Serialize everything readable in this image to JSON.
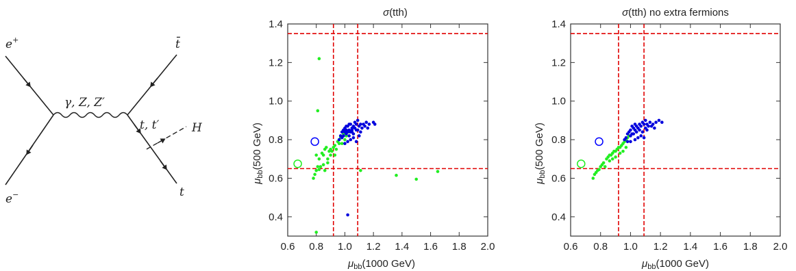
{
  "diagram": {
    "labels": {
      "e_plus": "e",
      "e_plus_sup": "+",
      "e_minus": "e",
      "e_minus_sup": "−",
      "boson": "γ, Z, Z′",
      "top_bar": "t̄",
      "top": "t",
      "internal_top": "t, t′",
      "higgs": "H"
    }
  },
  "chart_data": [
    {
      "type": "scatter",
      "title": "σ(tth)",
      "title_parts": {
        "symbol": "σ",
        "rest": "(tth)"
      },
      "xlabel": "μbb(1000 GeV)",
      "ylabel": "μbb(500 GeV)",
      "xlabel_parts": {
        "mu": "μ",
        "sub": "bb",
        "rest": "(1000 GeV)"
      },
      "ylabel_parts": {
        "mu": "μ",
        "sub": "bb",
        "rest": "(500 GeV)"
      },
      "xlim": [
        0.6,
        2.0
      ],
      "ylim": [
        0.3,
        1.4
      ],
      "xticks": [
        "0.6",
        "0.8",
        "1.0",
        "1.2",
        "1.4",
        "1.6",
        "1.8",
        "2.0"
      ],
      "yticks": [
        "0.4",
        "0.6",
        "0.8",
        "1.0",
        "1.2",
        "1.4"
      ],
      "grid": false,
      "reference_lines": {
        "vertical": [
          0.92,
          1.09
        ],
        "horizontal": [
          0.65,
          1.35
        ],
        "color": "#e00000"
      },
      "open_markers": [
        {
          "x": 0.79,
          "y": 0.79,
          "color": "#0000ff"
        },
        {
          "x": 0.67,
          "y": 0.675,
          "color": "#22ee22"
        }
      ],
      "series": [
        {
          "color": "#22ee22",
          "points": [
            [
              0.82,
              1.22
            ],
            [
              0.81,
              0.95
            ],
            [
              0.8,
              0.32
            ],
            [
              0.78,
              0.6
            ],
            [
              0.79,
              0.62
            ],
            [
              0.8,
              0.64
            ],
            [
              0.82,
              0.645
            ],
            [
              0.82,
              0.7
            ],
            [
              0.8,
              0.72
            ],
            [
              0.84,
              0.73
            ],
            [
              0.85,
              0.72
            ],
            [
              0.86,
              0.75
            ],
            [
              0.87,
              0.76
            ],
            [
              0.88,
              0.7
            ],
            [
              0.89,
              0.74
            ],
            [
              0.9,
              0.75
            ],
            [
              0.91,
              0.74
            ],
            [
              0.92,
              0.76
            ],
            [
              0.93,
              0.77
            ],
            [
              0.95,
              0.79
            ],
            [
              0.97,
              0.81
            ],
            [
              0.99,
              0.83
            ],
            [
              1.0,
              0.8
            ],
            [
              0.98,
              0.78
            ],
            [
              0.96,
              0.78
            ],
            [
              0.94,
              0.75
            ],
            [
              0.9,
              0.72
            ],
            [
              0.88,
              0.68
            ],
            [
              0.85,
              0.67
            ],
            [
              0.83,
              0.66
            ],
            [
              0.81,
              0.66
            ],
            [
              0.86,
              0.64
            ],
            [
              0.93,
              0.72
            ],
            [
              1.01,
              0.82
            ],
            [
              1.03,
              0.84
            ],
            [
              1.11,
              0.64
            ],
            [
              1.36,
              0.615
            ],
            [
              1.5,
              0.595
            ],
            [
              1.65,
              0.635
            ]
          ]
        },
        {
          "color": "#0000dd",
          "points": [
            [
              0.96,
              0.8
            ],
            [
              0.97,
              0.82
            ],
            [
              0.98,
              0.84
            ],
            [
              0.99,
              0.85
            ],
            [
              1.0,
              0.86
            ],
            [
              1.01,
              0.83
            ],
            [
              1.02,
              0.87
            ],
            [
              1.03,
              0.85
            ],
            [
              1.04,
              0.88
            ],
            [
              1.05,
              0.86
            ],
            [
              1.06,
              0.87
            ],
            [
              1.07,
              0.89
            ],
            [
              1.08,
              0.88
            ],
            [
              1.09,
              0.9
            ],
            [
              1.1,
              0.87
            ],
            [
              1.11,
              0.88
            ],
            [
              1.12,
              0.86
            ],
            [
              1.13,
              0.88
            ],
            [
              1.15,
              0.89
            ],
            [
              1.17,
              0.88
            ],
            [
              1.2,
              0.89
            ],
            [
              1.21,
              0.88
            ],
            [
              0.99,
              0.82
            ],
            [
              1.0,
              0.84
            ],
            [
              1.01,
              0.85
            ],
            [
              1.02,
              0.84
            ],
            [
              1.03,
              0.82
            ],
            [
              1.04,
              0.84
            ],
            [
              1.05,
              0.85
            ],
            [
              1.06,
              0.83
            ],
            [
              1.07,
              0.86
            ],
            [
              1.08,
              0.85
            ],
            [
              1.0,
              0.78
            ],
            [
              1.02,
              0.79
            ],
            [
              1.04,
              0.8
            ],
            [
              1.06,
              0.81
            ],
            [
              1.08,
              0.79
            ],
            [
              1.1,
              0.82
            ],
            [
              0.98,
              0.81
            ],
            [
              1.01,
              0.87
            ],
            [
              1.03,
              0.88
            ],
            [
              1.05,
              0.84
            ],
            [
              1.09,
              0.85
            ],
            [
              1.11,
              0.84
            ],
            [
              1.14,
              0.87
            ],
            [
              1.16,
              0.86
            ],
            [
              1.02,
              0.41
            ]
          ]
        }
      ]
    },
    {
      "type": "scatter",
      "title": "σ(tth) no extra fermions",
      "title_parts": {
        "symbol": "σ",
        "rest": "(tth) no extra fermions"
      },
      "xlabel": "μbb(1000 GeV)",
      "ylabel": "μbb(500 GeV)",
      "xlabel_parts": {
        "mu": "μ",
        "sub": "bb",
        "rest": "(1000 GeV)"
      },
      "ylabel_parts": {
        "mu": "μ",
        "sub": "bb",
        "rest": "(500 GeV)"
      },
      "xlim": [
        0.6,
        2.0
      ],
      "ylim": [
        0.3,
        1.4
      ],
      "xticks": [
        "0.6",
        "0.8",
        "1.0",
        "1.2",
        "1.4",
        "1.6",
        "1.8",
        "2.0"
      ],
      "yticks": [
        "0.4",
        "0.6",
        "0.8",
        "1.0",
        "1.2",
        "1.4"
      ],
      "grid": false,
      "reference_lines": {
        "vertical": [
          0.92,
          1.09
        ],
        "horizontal": [
          0.65,
          1.35
        ],
        "color": "#e00000"
      },
      "open_markers": [
        {
          "x": 0.79,
          "y": 0.79,
          "color": "#0000ff"
        },
        {
          "x": 0.67,
          "y": 0.675,
          "color": "#22ee22"
        }
      ],
      "series": [
        {
          "color": "#22ee22",
          "points": [
            [
              0.75,
              0.6
            ],
            [
              0.76,
              0.62
            ],
            [
              0.77,
              0.63
            ],
            [
              0.78,
              0.64
            ],
            [
              0.79,
              0.645
            ],
            [
              0.8,
              0.66
            ],
            [
              0.81,
              0.67
            ],
            [
              0.82,
              0.68
            ],
            [
              0.84,
              0.7
            ],
            [
              0.85,
              0.71
            ],
            [
              0.86,
              0.72
            ],
            [
              0.87,
              0.72
            ],
            [
              0.88,
              0.73
            ],
            [
              0.89,
              0.74
            ],
            [
              0.9,
              0.74
            ],
            [
              0.91,
              0.75
            ],
            [
              0.92,
              0.76
            ],
            [
              0.93,
              0.76
            ],
            [
              0.94,
              0.77
            ],
            [
              0.95,
              0.78
            ],
            [
              0.96,
              0.79
            ],
            [
              0.97,
              0.8
            ],
            [
              0.98,
              0.81
            ],
            [
              0.99,
              0.82
            ],
            [
              0.83,
              0.66
            ],
            [
              0.86,
              0.69
            ],
            [
              0.88,
              0.7
            ],
            [
              0.9,
              0.71
            ],
            [
              0.93,
              0.73
            ],
            [
              0.95,
              0.74
            ],
            [
              0.97,
              0.76
            ]
          ]
        },
        {
          "color": "#0000dd",
          "points": [
            [
              0.96,
              0.8
            ],
            [
              0.97,
              0.81
            ],
            [
              0.98,
              0.83
            ],
            [
              0.99,
              0.84
            ],
            [
              1.0,
              0.85
            ],
            [
              1.01,
              0.83
            ],
            [
              1.02,
              0.86
            ],
            [
              1.03,
              0.85
            ],
            [
              1.04,
              0.87
            ],
            [
              1.05,
              0.86
            ],
            [
              1.06,
              0.88
            ],
            [
              1.07,
              0.87
            ],
            [
              1.08,
              0.89
            ],
            [
              1.09,
              0.88
            ],
            [
              1.1,
              0.9
            ],
            [
              1.11,
              0.88
            ],
            [
              1.12,
              0.87
            ],
            [
              1.13,
              0.89
            ],
            [
              1.15,
              0.88
            ],
            [
              1.17,
              0.89
            ],
            [
              1.19,
              0.9
            ],
            [
              1.21,
              0.89
            ],
            [
              1.0,
              0.82
            ],
            [
              1.02,
              0.83
            ],
            [
              1.04,
              0.84
            ],
            [
              1.06,
              0.85
            ],
            [
              1.08,
              0.84
            ],
            [
              1.1,
              0.86
            ],
            [
              1.0,
              0.79
            ],
            [
              1.03,
              0.8
            ],
            [
              1.05,
              0.81
            ],
            [
              1.07,
              0.82
            ],
            [
              1.09,
              0.81
            ],
            [
              0.98,
              0.79
            ],
            [
              1.01,
              0.87
            ],
            [
              1.03,
              0.88
            ],
            [
              1.11,
              0.85
            ],
            [
              1.14,
              0.87
            ],
            [
              1.16,
              0.86
            ]
          ]
        }
      ]
    }
  ]
}
